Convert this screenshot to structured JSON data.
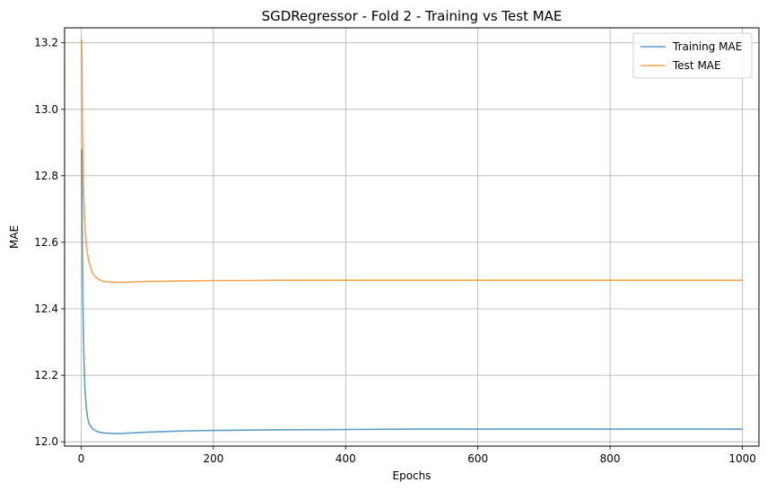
{
  "chart_data": {
    "type": "line",
    "title": "SGDRegressor - Fold 2 - Training vs Test MAE",
    "xlabel": "Epochs",
    "ylabel": "MAE",
    "xlim": [
      -25,
      1025
    ],
    "ylim": [
      11.987,
      13.245
    ],
    "x_ticks": [
      0,
      200,
      400,
      600,
      800,
      1000
    ],
    "x_tick_labels": [
      "0",
      "200",
      "400",
      "600",
      "800",
      "1000"
    ],
    "y_ticks": [
      12.0,
      12.2,
      12.4,
      12.6,
      12.8,
      13.0,
      13.2
    ],
    "y_tick_labels": [
      "12.0",
      "12.2",
      "12.4",
      "12.6",
      "12.8",
      "13.0",
      "13.2"
    ],
    "grid": true,
    "legend_position": "top-right",
    "series": [
      {
        "name": "Training MAE",
        "color": "#1f77b4",
        "x": [
          1,
          2,
          3,
          4,
          5,
          6,
          8,
          10,
          12,
          15,
          18,
          22,
          27,
          33,
          40,
          50,
          60,
          70,
          80,
          100,
          130,
          160,
          200,
          250,
          300,
          400,
          500,
          600,
          700,
          800,
          900,
          1000
        ],
        "y": [
          12.88,
          12.55,
          12.38,
          12.27,
          12.2,
          12.15,
          12.1,
          12.07,
          12.055,
          12.045,
          12.038,
          12.033,
          12.029,
          12.027,
          12.026,
          12.025,
          12.025,
          12.026,
          12.027,
          12.029,
          12.031,
          12.033,
          12.034,
          12.035,
          12.036,
          12.037,
          12.038,
          12.038,
          12.038,
          12.038,
          12.038,
          12.038
        ]
      },
      {
        "name": "Test MAE",
        "color": "#ff7f0e",
        "x": [
          1,
          2,
          3,
          4,
          5,
          6,
          8,
          10,
          12,
          15,
          18,
          22,
          27,
          33,
          40,
          50,
          60,
          70,
          80,
          100,
          130,
          160,
          200,
          250,
          300,
          400,
          500,
          600,
          700,
          800,
          900,
          1000
        ],
        "y": [
          13.21,
          12.95,
          12.82,
          12.74,
          12.68,
          12.64,
          12.59,
          12.56,
          12.54,
          12.52,
          12.505,
          12.495,
          12.488,
          12.483,
          12.481,
          12.48,
          12.48,
          12.48,
          12.481,
          12.482,
          12.483,
          12.484,
          12.485,
          12.485,
          12.486,
          12.486,
          12.486,
          12.486,
          12.486,
          12.486,
          12.486,
          12.486
        ]
      }
    ]
  }
}
